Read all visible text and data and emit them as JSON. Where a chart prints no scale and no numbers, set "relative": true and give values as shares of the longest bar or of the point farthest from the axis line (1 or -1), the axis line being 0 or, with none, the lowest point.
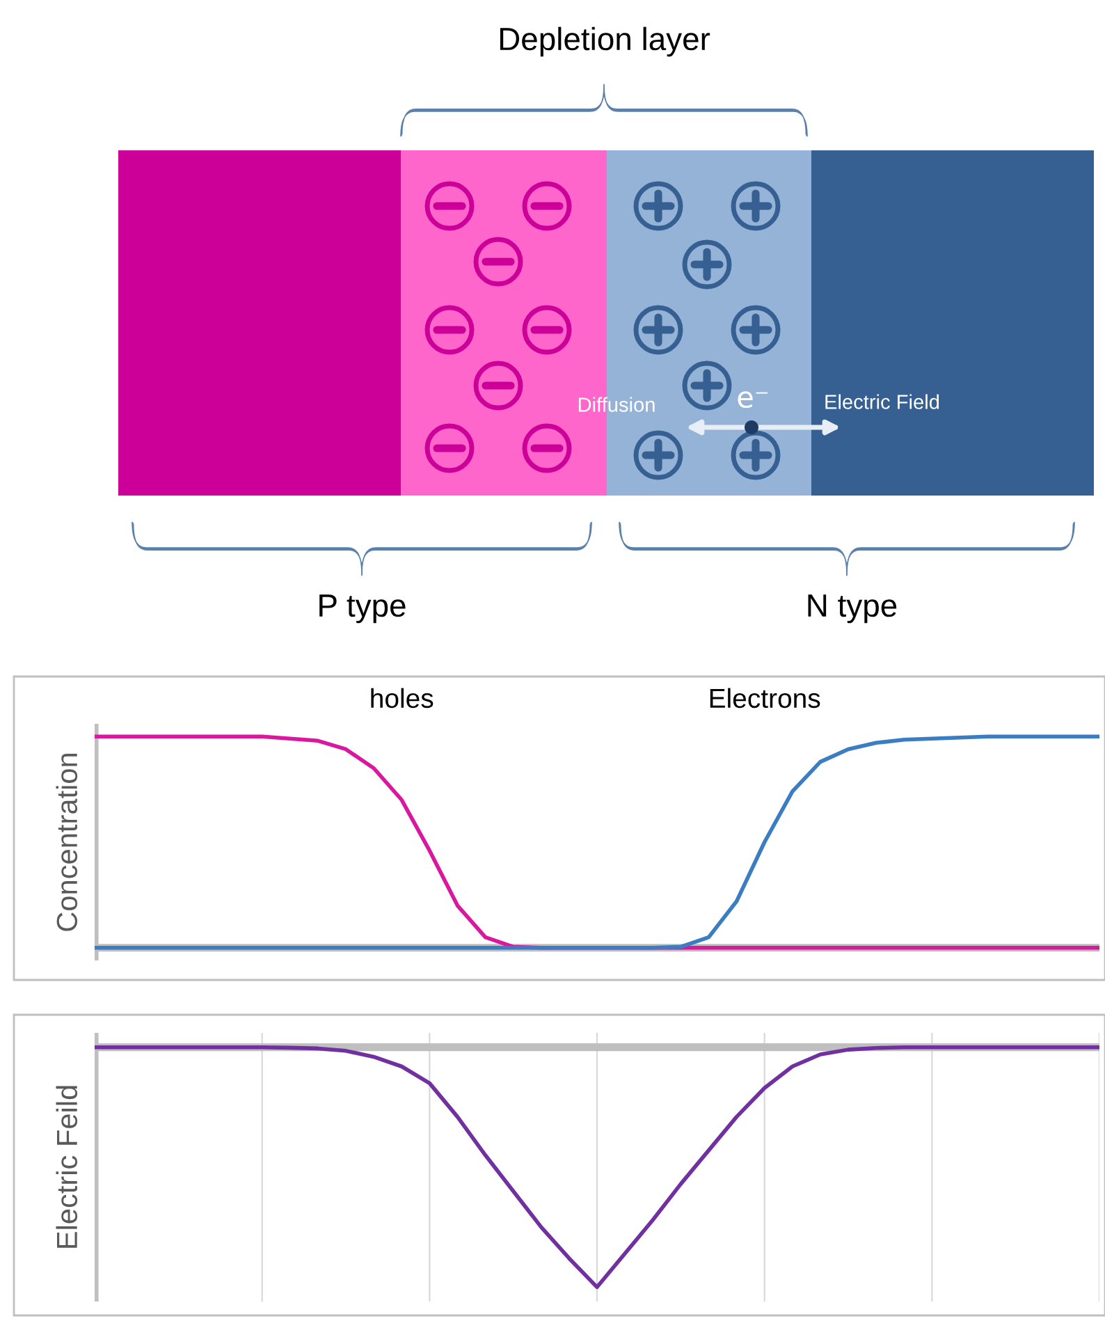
{
  "chart_data": [
    {
      "type": "other",
      "annotations": [
        "Depletion layer",
        "P type",
        "N type",
        "Diffusion",
        "e⁻",
        "Electric Field"
      ]
    },
    {
      "type": "line",
      "relative": true,
      "ylabel": "Concentration",
      "categories": [
        null,
        null,
        null,
        null,
        null,
        null,
        null,
        null,
        null,
        null,
        null,
        null,
        null,
        null,
        null,
        null,
        null,
        null,
        null,
        null,
        null,
        null,
        null,
        null,
        null,
        null,
        null,
        null,
        null,
        null,
        null,
        null,
        null,
        null,
        null,
        null,
        null
      ],
      "grid": false,
      "legend": false,
      "series": [
        {
          "name": "holes",
          "color": "#d9179f",
          "values": [
            1,
            1,
            1,
            1,
            1,
            1,
            1,
            0.99,
            0.98,
            0.94,
            0.85,
            0.7,
            0.46,
            0.2,
            0.05,
            0.005,
            0,
            0,
            0,
            0,
            0,
            0,
            0,
            0,
            0,
            0,
            0,
            0,
            0,
            0,
            0,
            0,
            0,
            0,
            0,
            0,
            0
          ]
        },
        {
          "name": "Electrons",
          "color": "#3a7dc2",
          "values": [
            0,
            0,
            0,
            0,
            0,
            0,
            0,
            0,
            0,
            0,
            0,
            0,
            0,
            0,
            0,
            0,
            0,
            0,
            0,
            0,
            0,
            0.005,
            0.05,
            0.22,
            0.5,
            0.74,
            0.88,
            0.94,
            0.97,
            0.985,
            0.99,
            0.995,
            1,
            1,
            1,
            1,
            1
          ]
        }
      ]
    },
    {
      "type": "line",
      "relative": true,
      "ylabel": "Electric Feild",
      "categories": [
        null,
        null,
        null,
        null,
        null,
        null,
        null,
        null,
        null,
        null,
        null,
        null,
        null,
        null,
        null,
        null,
        null,
        null,
        null,
        null,
        null,
        null,
        null,
        null,
        null,
        null,
        null,
        null,
        null,
        null,
        null,
        null,
        null,
        null,
        null,
        null,
        null
      ],
      "grid": "x",
      "legend": false,
      "series": [
        {
          "color": "#7030a0",
          "values": [
            0,
            0,
            0,
            0,
            0,
            0,
            0,
            -0.002,
            -0.005,
            -0.015,
            -0.04,
            -0.08,
            -0.15,
            -0.29,
            -0.45,
            -0.6,
            -0.75,
            -0.88,
            -1,
            -0.86,
            -0.72,
            -0.57,
            -0.43,
            -0.29,
            -0.17,
            -0.08,
            -0.03,
            -0.01,
            -0.003,
            0,
            0,
            0,
            0,
            0,
            0,
            0,
            0
          ]
        }
      ]
    }
  ]
}
